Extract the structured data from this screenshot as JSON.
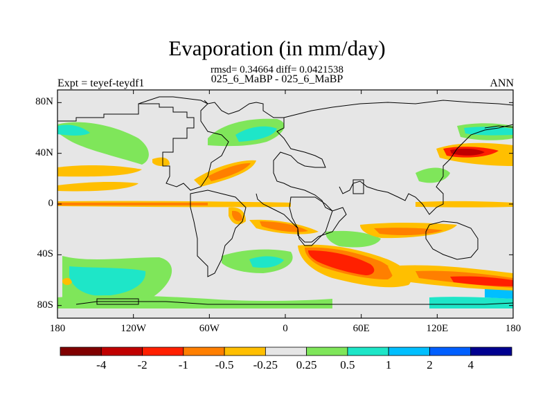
{
  "title": "Evaporation (in mm/day)",
  "subtitle_stats": "rmsd= 0.34664 diff= 0.0421538",
  "subtitle_cases": "025_6_MaBP - 025_6_MaBP",
  "left_label": "Expt = teyef-teydf1",
  "right_label": "ANN",
  "map": {
    "ocean_color": "#e6e6e6",
    "y_ticks": [
      {
        "label": "80N",
        "lat": 80
      },
      {
        "label": "40N",
        "lat": 40
      },
      {
        "label": "0",
        "lat": 0
      },
      {
        "label": "40S",
        "lat": -40
      },
      {
        "label": "80S",
        "lat": -80
      }
    ],
    "x_ticks": [
      {
        "label": "180",
        "lon": -180
      },
      {
        "label": "120W",
        "lon": -120
      },
      {
        "label": "60W",
        "lon": -60
      },
      {
        "label": "0",
        "lon": 0
      },
      {
        "label": "60E",
        "lon": 60
      },
      {
        "label": "120E",
        "lon": 120
      },
      {
        "label": "180",
        "lon": 180
      }
    ]
  },
  "colorbar": {
    "colors": [
      "#800000",
      "#c00000",
      "#ff2000",
      "#ff7f00",
      "#ffbf00",
      "#e6e6e6",
      "#7fe65a",
      "#1ee6c8",
      "#00bfff",
      "#005fff",
      "#000090"
    ],
    "labels": [
      "-4",
      "-2",
      "-1",
      "-0.5",
      "-0.25",
      "0.25",
      "0.5",
      "1",
      "2",
      "4"
    ]
  }
}
